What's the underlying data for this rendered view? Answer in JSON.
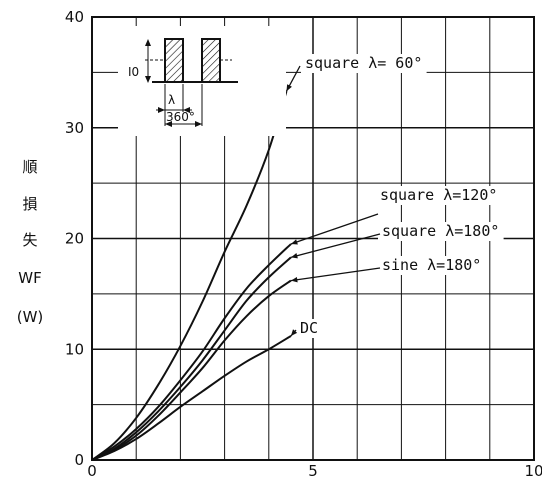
{
  "chart_data": {
    "type": "line",
    "xlim": [
      0,
      10
    ],
    "ylim": [
      0,
      40
    ],
    "x_ticks": [
      "0",
      "5",
      "10"
    ],
    "y_ticks": [
      "0",
      "10",
      "20",
      "30",
      "40"
    ],
    "ylabel_lines": [
      "順",
      "損",
      "失",
      "WF",
      "(W)"
    ],
    "grid": true,
    "series": [
      {
        "name": "square λ= 60°",
        "x": [
          0,
          0.5,
          1,
          1.5,
          2,
          2.5,
          3,
          3.5,
          4,
          4.4
        ],
        "y": [
          0,
          1.5,
          3.8,
          6.8,
          10.3,
          14.3,
          18.8,
          23.0,
          28.0,
          33.3
        ]
      },
      {
        "name": "square λ=120°",
        "x": [
          0,
          0.5,
          1,
          1.5,
          2,
          2.5,
          3,
          3.5,
          4,
          4.5
        ],
        "y": [
          0,
          1.2,
          2.8,
          4.8,
          7.2,
          9.8,
          12.8,
          15.5,
          17.6,
          19.5
        ]
      },
      {
        "name": "square λ=180°",
        "x": [
          0,
          0.5,
          1,
          1.5,
          2,
          2.5,
          3,
          3.5,
          4,
          4.5
        ],
        "y": [
          0,
          1.0,
          2.5,
          4.4,
          6.6,
          9.0,
          11.7,
          14.4,
          16.5,
          18.3
        ]
      },
      {
        "name": "sine λ=180°",
        "x": [
          0,
          0.5,
          1,
          1.5,
          2,
          2.5,
          3,
          3.5,
          4,
          4.5
        ],
        "y": [
          0,
          0.9,
          2.2,
          4.0,
          6.1,
          8.3,
          10.8,
          13.0,
          14.8,
          16.2
        ]
      },
      {
        "name": "DC",
        "x": [
          0,
          0.5,
          1,
          1.5,
          2,
          2.5,
          3,
          3.5,
          4,
          4.5
        ],
        "y": [
          0,
          0.8,
          1.9,
          3.3,
          4.8,
          6.2,
          7.6,
          8.9,
          10.0,
          11.2
        ]
      }
    ],
    "annotations": [
      {
        "text": "square λ= 60°",
        "target_series": 0
      },
      {
        "text": "square λ=120°",
        "target_series": 1
      },
      {
        "text": "square λ=180°",
        "target_series": 2
      },
      {
        "text": "sine λ=180°",
        "target_series": 3
      },
      {
        "text": "DC",
        "target_series": 4
      }
    ],
    "inset": {
      "labels": [
        "I0",
        "λ",
        "360°"
      ]
    }
  }
}
